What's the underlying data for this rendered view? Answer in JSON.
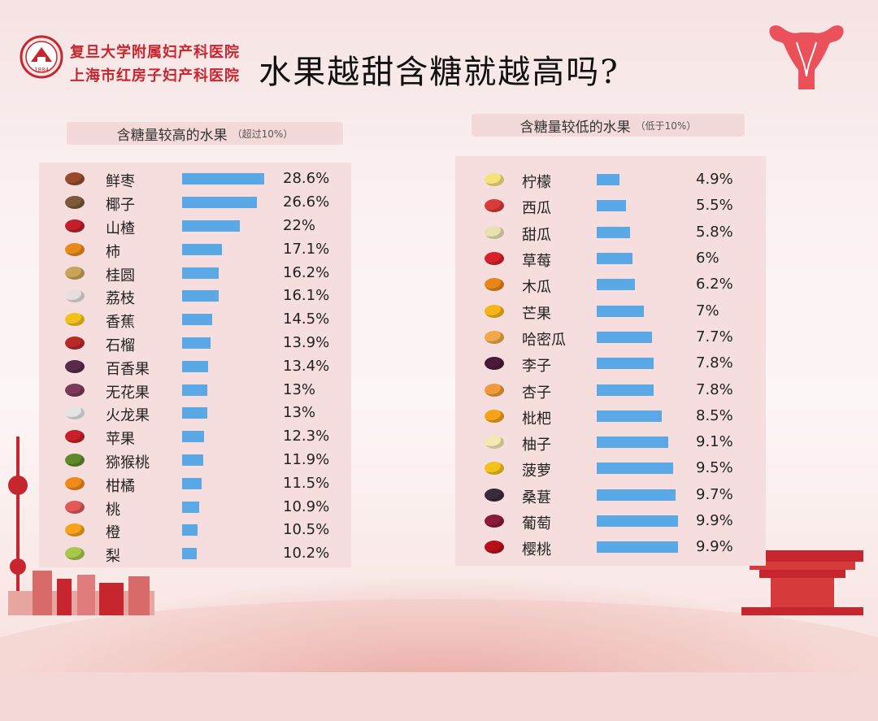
{
  "title": "水果越甜含糖就越高吗?",
  "hospital": {
    "line1": "复旦大学附属妇产科医院",
    "line2": "上海市红房子妇产科医院",
    "logo_year": "1884"
  },
  "colors": {
    "bar": "#5aa9e6",
    "brand": "#c8262f",
    "panel": "#f6dede"
  },
  "chart_data": [
    {
      "type": "bar",
      "orientation": "horizontal",
      "title": "含糖量较高的水果",
      "title_note": "（超过10%）",
      "unit": "%",
      "categories": [
        "鲜枣",
        "椰子",
        "山楂",
        "柿",
        "桂圆",
        "荔枝",
        "香蕉",
        "石榴",
        "百香果",
        "无花果",
        "火龙果",
        "苹果",
        "猕猴桃",
        "柑橘",
        "桃",
        "橙",
        "梨"
      ],
      "icons": [
        "jujube-icon",
        "coconut-icon",
        "hawthorn-icon",
        "persimmon-icon",
        "longan-icon",
        "lychee-icon",
        "banana-icon",
        "pomegranate-icon",
        "passion-fruit-icon",
        "fig-icon",
        "dragon-fruit-icon",
        "apple-icon",
        "kiwi-icon",
        "tangerine-icon",
        "peach-icon",
        "orange-icon",
        "pear-icon"
      ],
      "icon_colors": [
        "#9a4a2a",
        "#7b5a3a",
        "#c0202a",
        "#e88a1a",
        "#c9a35a",
        "#e8dede",
        "#f2c21a",
        "#b82a2a",
        "#5a2a4a",
        "#7a3a5a",
        "#e4e4e4",
        "#c8202a",
        "#5f8a2a",
        "#f08a1a",
        "#e05a5a",
        "#f5a31a",
        "#a8c84a"
      ],
      "values": [
        28.6,
        26.6,
        22,
        17.1,
        16.2,
        16.1,
        14.5,
        13.9,
        13.4,
        13,
        13,
        12.3,
        11.9,
        11.5,
        10.9,
        10.5,
        10.2
      ],
      "value_labels": [
        "28.6%",
        "26.6%",
        "22%",
        "17.1%",
        "16.2%",
        "16.1%",
        "14.5%",
        "13.9%",
        "13.4%",
        "13%",
        "13%",
        "12.3%",
        "11.9%",
        "11.5%",
        "10.9%",
        "10.5%",
        "10.2%"
      ],
      "x_range": [
        10,
        28.6
      ]
    },
    {
      "type": "bar",
      "orientation": "horizontal",
      "title": "含糖量较低的水果",
      "title_note": "（低于10%）",
      "unit": "%",
      "categories": [
        "柠檬",
        "西瓜",
        "甜瓜",
        "草莓",
        "木瓜",
        "芒果",
        "哈密瓜",
        "李子",
        "杏子",
        "枇杷",
        "柚子",
        "菠萝",
        "桑葚",
        "葡萄",
        "樱桃"
      ],
      "icons": [
        "lemon-icon",
        "watermelon-icon",
        "melon-icon",
        "strawberry-icon",
        "papaya-icon",
        "mango-icon",
        "hami-melon-icon",
        "plum-icon",
        "apricot-icon",
        "loquat-icon",
        "pomelo-icon",
        "pineapple-icon",
        "mulberry-icon",
        "grape-icon",
        "cherry-icon"
      ],
      "icon_colors": [
        "#f4e27a",
        "#d93a3a",
        "#e8e0b0",
        "#d8202a",
        "#e8861a",
        "#f5b51a",
        "#f0a84a",
        "#4a1a3a",
        "#f09a3a",
        "#f5a31a",
        "#f5e8b0",
        "#f2c21a",
        "#3a2a3a",
        "#8a1a3a",
        "#b8101a"
      ],
      "values": [
        4.9,
        5.5,
        5.8,
        6,
        6.2,
        7,
        7.7,
        7.8,
        7.8,
        8.5,
        9.1,
        9.5,
        9.7,
        9.9,
        9.9
      ],
      "value_labels": [
        "4.9%",
        "5.5%",
        "5.8%",
        "6%",
        "6.2%",
        "7%",
        "7.7%",
        "7.8%",
        "7.8%",
        "8.5%",
        "9.1%",
        "9.5%",
        "9.7%",
        "9.9%",
        "9.9%"
      ],
      "x_range": [
        4.5,
        9.9
      ]
    }
  ]
}
